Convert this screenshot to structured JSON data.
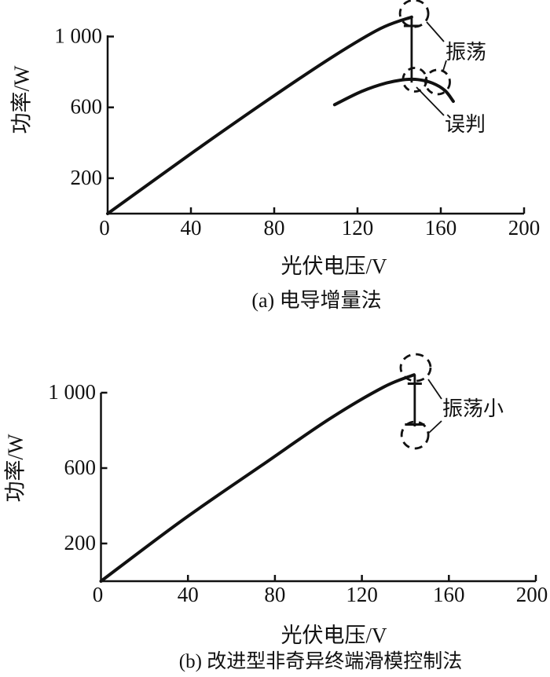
{
  "background": "#ffffff",
  "ink_color": "#111111",
  "chart_data": [
    {
      "id": "a",
      "type": "line",
      "title": "(a) 电导增量法",
      "xlabel": "光伏电压/V",
      "ylabel": "功率/W",
      "xlim": [
        0,
        200
      ],
      "ylim": [
        0,
        1000
      ],
      "x_ticks": [
        0,
        40,
        80,
        120,
        160,
        200
      ],
      "x_tick_labels": [
        "0",
        "40",
        "80",
        "120",
        "160",
        "200"
      ],
      "y_ticks": [
        200,
        600,
        1000
      ],
      "y_tick_labels": [
        "200",
        "600",
        "1 000"
      ],
      "grid": false,
      "legend": false,
      "series": [
        {
          "name": "mppt-tracking-trajectory",
          "x": [
            0,
            42,
            78,
            108,
            131,
            146
          ],
          "y": [
            0,
            355,
            650,
            885,
            1045,
            1110
          ]
        },
        {
          "name": "pv-curve-near-mpp",
          "x": [
            109,
            122,
            134,
            143,
            149,
            156,
            162,
            166
          ],
          "y": [
            615,
            690,
            738,
            757,
            757,
            737,
            695,
            634
          ]
        }
      ],
      "oscillation_segment": {
        "v": 146,
        "p_top": 1110,
        "p_bottom": 740,
        "cap_levels": [
          1060
        ]
      },
      "dashed_circles": [
        {
          "name": "oscillation-top-region",
          "v": 147.2,
          "p": 1130
        },
        {
          "name": "oscillation-bottom-region",
          "v": 147.5,
          "p": 756
        },
        {
          "name": "misjudge-region",
          "v": 158.5,
          "p": 743
        }
      ],
      "annotations": [
        {
          "text": "振荡"
        },
        {
          "text": "误判"
        }
      ]
    },
    {
      "id": "b",
      "type": "line",
      "title": "(b) 改进型非奇异终端滑模控制法",
      "xlabel": "光伏电压/V",
      "ylabel": "功率/W",
      "xlim": [
        0,
        200
      ],
      "ylim": [
        0,
        1000
      ],
      "x_ticks": [
        0,
        40,
        80,
        120,
        160,
        200
      ],
      "x_tick_labels": [
        "0",
        "40",
        "80",
        "120",
        "160",
        "200"
      ],
      "y_ticks": [
        200,
        600,
        1000
      ],
      "y_tick_labels": [
        "200",
        "600",
        "1 000"
      ],
      "grid": false,
      "legend": false,
      "series": [
        {
          "name": "mppt-tracking-trajectory",
          "x": [
            0,
            37,
            74,
            105,
            130,
            144
          ],
          "y": [
            0,
            320,
            615,
            860,
            1030,
            1095
          ]
        }
      ],
      "oscillation_segment": {
        "v": 144.3,
        "p_top": 1096,
        "p_bottom": 821,
        "cap_levels": [
          1048,
          831
        ]
      },
      "dashed_circles": [
        {
          "name": "oscillation-top-region",
          "v": 144.7,
          "p": 1133
        },
        {
          "name": "oscillation-bottom-region",
          "v": 144.4,
          "p": 775
        }
      ],
      "annotations": [
        {
          "text": "振荡小"
        }
      ]
    }
  ]
}
